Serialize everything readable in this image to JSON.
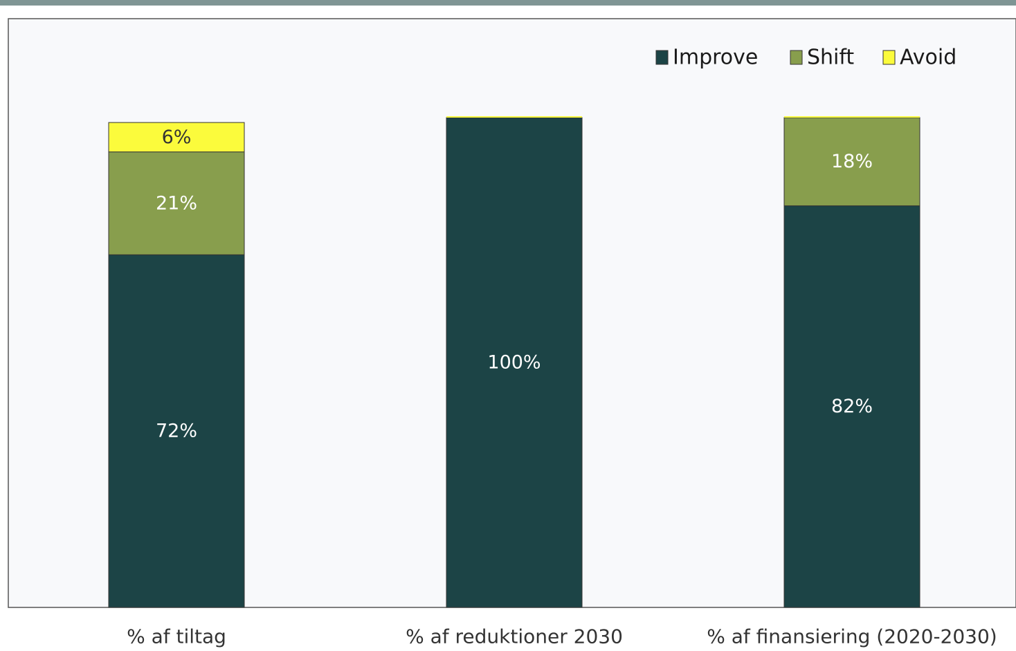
{
  "chart_data": {
    "type": "bar",
    "stacked": true,
    "percent_scale": true,
    "categories": [
      "% af tiltag",
      "% af reduktioner 2030",
      "% af finansiering (2020-2030)"
    ],
    "series": [
      {
        "name": "Improve",
        "values": [
          72,
          100,
          82
        ],
        "labels": [
          "72%",
          "100%",
          "82%"
        ],
        "color": "#1c4446",
        "label_color": "#ffffff"
      },
      {
        "name": "Shift",
        "values": [
          21,
          0,
          18
        ],
        "labels": [
          "21%",
          "",
          "18%"
        ],
        "color": "#889e4d",
        "label_color": "#ffffff"
      },
      {
        "name": "Avoid",
        "values": [
          6,
          0,
          0
        ],
        "labels": [
          "6%",
          "",
          ""
        ],
        "color": "#fbfb3c",
        "label_color": "#333333"
      }
    ],
    "ylim": [
      0,
      100
    ],
    "grid": false,
    "legend": {
      "position": "top-right"
    },
    "plot_background": "#f8f9fb"
  },
  "colors": {
    "top_bar": "#7f9594",
    "border": "#555555"
  }
}
